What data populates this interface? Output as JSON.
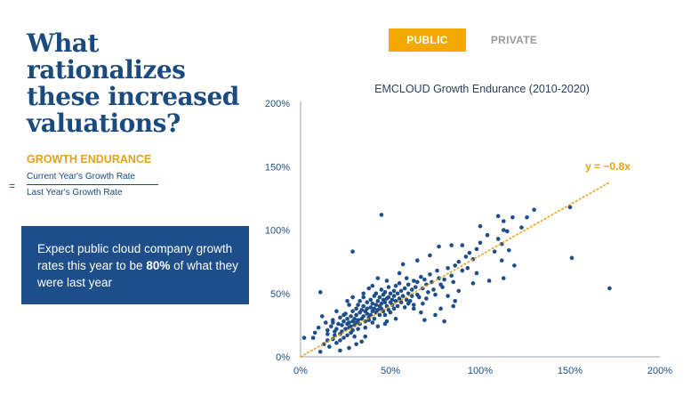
{
  "headline": "What rationalizes these increased valuations?",
  "formula": {
    "title": "GROWTH ENDURANCE",
    "equals": "=",
    "numerator": "Current Year's Growth Rate",
    "denominator": "Last Year's Growth Rate"
  },
  "callout": {
    "text_before": "Expect public cloud company growth rates this year to be ",
    "bold": "80%",
    "text_after": " of what they were last year"
  },
  "tabs": [
    {
      "label": "PUBLIC",
      "active": true
    },
    {
      "label": "PRIVATE",
      "active": false
    }
  ],
  "colors": {
    "headline": "#1a4a7e",
    "accent": "#f2a900",
    "callout_bg": "#1d4e89",
    "points": "#1d4e89",
    "trendline": "#e6a11b"
  },
  "chart_data": {
    "type": "scatter",
    "title": "EMCLOUD Growth Endurance (2010-2020)",
    "xlim": [
      0,
      200
    ],
    "ylim": [
      0,
      200
    ],
    "x_ticks": [
      "0%",
      "50%",
      "100%",
      "150%",
      "200%"
    ],
    "y_ticks": [
      "0%",
      "50%",
      "100%",
      "150%",
      "200%"
    ],
    "grid": false,
    "trendline": {
      "label": "y = ~0.8x",
      "slope": 0.8,
      "x_range": [
        0,
        172
      ]
    },
    "points": [
      [
        2,
        15
      ],
      [
        7,
        15
      ],
      [
        11,
        4
      ],
      [
        13,
        10
      ],
      [
        11,
        51
      ],
      [
        15,
        13
      ],
      [
        15,
        18
      ],
      [
        15,
        21
      ],
      [
        16,
        8
      ],
      [
        17,
        24
      ],
      [
        18,
        14
      ],
      [
        18,
        29
      ],
      [
        19,
        17
      ],
      [
        19,
        20
      ],
      [
        20,
        22
      ],
      [
        20,
        11
      ],
      [
        21,
        26
      ],
      [
        22,
        18
      ],
      [
        22,
        31
      ],
      [
        22,
        13
      ],
      [
        23,
        25
      ],
      [
        23,
        20
      ],
      [
        24,
        28
      ],
      [
        24,
        15
      ],
      [
        25,
        34
      ],
      [
        25,
        22
      ],
      [
        26,
        30
      ],
      [
        26,
        26
      ],
      [
        26,
        17
      ],
      [
        27,
        41
      ],
      [
        27,
        27
      ],
      [
        27,
        23
      ],
      [
        28,
        32
      ],
      [
        28,
        24
      ],
      [
        28,
        19
      ],
      [
        29,
        36
      ],
      [
        29,
        28
      ],
      [
        29,
        21
      ],
      [
        29,
        83
      ],
      [
        30,
        30
      ],
      [
        30,
        25
      ],
      [
        30,
        16
      ],
      [
        31,
        38
      ],
      [
        31,
        33
      ],
      [
        31,
        27
      ],
      [
        32,
        41
      ],
      [
        32,
        29
      ],
      [
        32,
        22
      ],
      [
        33,
        35
      ],
      [
        33,
        44
      ],
      [
        33,
        26
      ],
      [
        34,
        30
      ],
      [
        34,
        37
      ],
      [
        34,
        12
      ],
      [
        35,
        47
      ],
      [
        35,
        32
      ],
      [
        35,
        40
      ],
      [
        36,
        28
      ],
      [
        36,
        36
      ],
      [
        36,
        23
      ],
      [
        37,
        43
      ],
      [
        37,
        34
      ],
      [
        37,
        38
      ],
      [
        38,
        31
      ],
      [
        38,
        29
      ],
      [
        38,
        54
      ],
      [
        39,
        39
      ],
      [
        39,
        33
      ],
      [
        39,
        45
      ],
      [
        40,
        36
      ],
      [
        40,
        42
      ],
      [
        40,
        27
      ],
      [
        41,
        48
      ],
      [
        41,
        38
      ],
      [
        41,
        30
      ],
      [
        42,
        41
      ],
      [
        42,
        35
      ],
      [
        42,
        50
      ],
      [
        43,
        37
      ],
      [
        43,
        44
      ],
      [
        43,
        24
      ],
      [
        44,
        40
      ],
      [
        44,
        47
      ],
      [
        44,
        33
      ],
      [
        45,
        53
      ],
      [
        45,
        42
      ],
      [
        45,
        38
      ],
      [
        46,
        36
      ],
      [
        46,
        45
      ],
      [
        46,
        49
      ],
      [
        47,
        43
      ],
      [
        47,
        33
      ],
      [
        47,
        51
      ],
      [
        48,
        40
      ],
      [
        48,
        46
      ],
      [
        48,
        28
      ],
      [
        49,
        47
      ],
      [
        49,
        37
      ],
      [
        49,
        55
      ],
      [
        50,
        43
      ],
      [
        50,
        50
      ],
      [
        50,
        35
      ],
      [
        51,
        45
      ],
      [
        51,
        41
      ],
      [
        52,
        52
      ],
      [
        52,
        48
      ],
      [
        52,
        38
      ],
      [
        53,
        56
      ],
      [
        53,
        44
      ],
      [
        54,
        50
      ],
      [
        54,
        40
      ],
      [
        55,
        46
      ],
      [
        55,
        58
      ],
      [
        56,
        52
      ],
      [
        56,
        43
      ],
      [
        57,
        48
      ],
      [
        58,
        54
      ],
      [
        58,
        39
      ],
      [
        59,
        45
      ],
      [
        59,
        62
      ],
      [
        60,
        50
      ],
      [
        60,
        57
      ],
      [
        61,
        44
      ],
      [
        62,
        53
      ],
      [
        62,
        48
      ],
      [
        63,
        60
      ],
      [
        63,
        41
      ],
      [
        64,
        55
      ],
      [
        65,
        49
      ],
      [
        65,
        59
      ],
      [
        66,
        47
      ],
      [
        67,
        63
      ],
      [
        68,
        54
      ],
      [
        68,
        42
      ],
      [
        69,
        61
      ],
      [
        70,
        57
      ],
      [
        71,
        51
      ],
      [
        72,
        65
      ],
      [
        73,
        59
      ],
      [
        74,
        53
      ],
      [
        75,
        49
      ],
      [
        76,
        68
      ],
      [
        77,
        62
      ],
      [
        78,
        57
      ],
      [
        79,
        55
      ],
      [
        80,
        61
      ],
      [
        82,
        70
      ],
      [
        84,
        64
      ],
      [
        85,
        59
      ],
      [
        86,
        72
      ],
      [
        88,
        75
      ],
      [
        90,
        68
      ],
      [
        92,
        79
      ],
      [
        94,
        82
      ],
      [
        96,
        77
      ],
      [
        98,
        85
      ],
      [
        100,
        90
      ],
      [
        77,
        87
      ],
      [
        90,
        88
      ],
      [
        108,
        83
      ],
      [
        110,
        93
      ],
      [
        112,
        89
      ],
      [
        113,
        100
      ],
      [
        100,
        103
      ],
      [
        113,
        107
      ],
      [
        118,
        110
      ],
      [
        126,
        110
      ],
      [
        110,
        111
      ],
      [
        112,
        76
      ],
      [
        113,
        62
      ],
      [
        150,
        118
      ],
      [
        151,
        78
      ],
      [
        172,
        54
      ],
      [
        45,
        112
      ],
      [
        24,
        33
      ],
      [
        20,
        36
      ],
      [
        18,
        27
      ],
      [
        26,
        44
      ],
      [
        29,
        47
      ],
      [
        35,
        50
      ],
      [
        40,
        56
      ],
      [
        43,
        62
      ],
      [
        48,
        60
      ],
      [
        55,
        66
      ],
      [
        60,
        42
      ],
      [
        70,
        46
      ],
      [
        82,
        48
      ],
      [
        88,
        52
      ],
      [
        96,
        58
      ],
      [
        63,
        38
      ],
      [
        67,
        35
      ],
      [
        75,
        33
      ],
      [
        80,
        28
      ],
      [
        86,
        44
      ],
      [
        53,
        30
      ],
      [
        47,
        26
      ],
      [
        36,
        16
      ],
      [
        31,
        10
      ],
      [
        27,
        7
      ],
      [
        22,
        5
      ],
      [
        14,
        27
      ],
      [
        12,
        32
      ],
      [
        10,
        23
      ],
      [
        8,
        19
      ],
      [
        57,
        73
      ],
      [
        65,
        76
      ],
      [
        72,
        80
      ],
      [
        84,
        88
      ],
      [
        104,
        96
      ],
      [
        115,
        99
      ],
      [
        123,
        102
      ],
      [
        130,
        116
      ],
      [
        116,
        84
      ],
      [
        119,
        72
      ],
      [
        93,
        70
      ],
      [
        98,
        66
      ],
      [
        105,
        60
      ],
      [
        85,
        40
      ],
      [
        78,
        38
      ],
      [
        69,
        29
      ]
    ]
  }
}
